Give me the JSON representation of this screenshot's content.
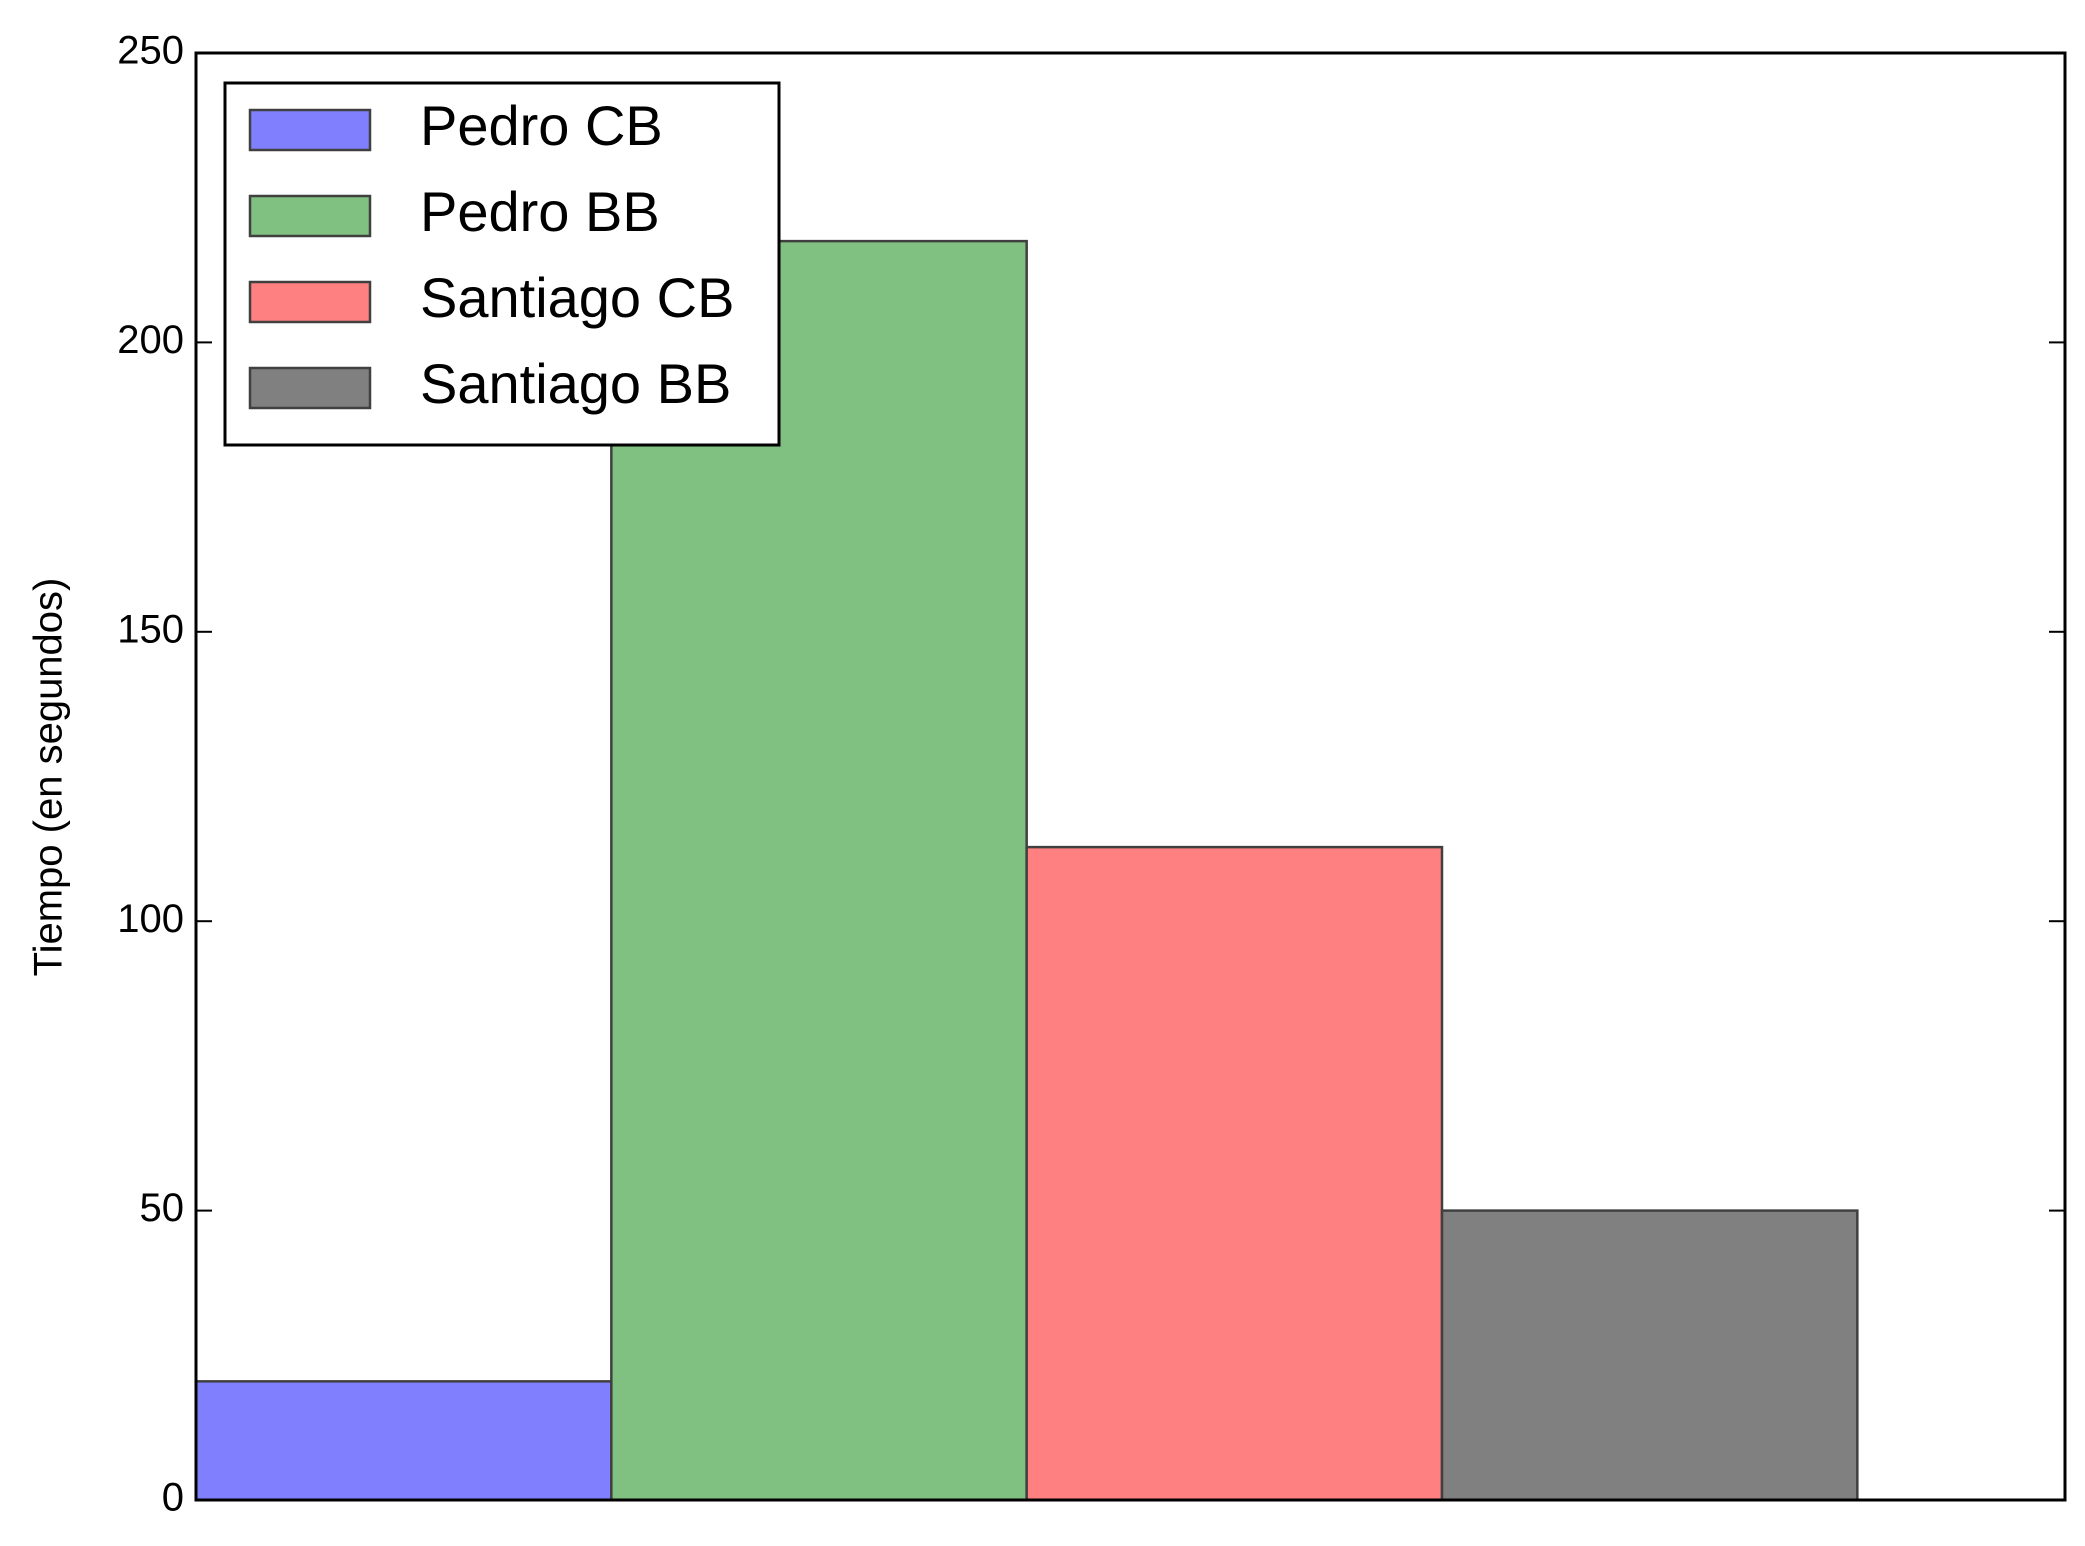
{
  "chart_data": {
    "type": "bar",
    "ylabel": "Tiempo (en segundos)",
    "series": [
      {
        "name": "Pedro CB",
        "color": "#8080ff",
        "values": [
          20.5
        ]
      },
      {
        "name": "Pedro BB",
        "color": "#80c080",
        "values": [
          217.5
        ]
      },
      {
        "name": "Santiago CB",
        "color": "#ff8080",
        "values": [
          112.8
        ]
      },
      {
        "name": "Santiago BB",
        "color": "#808080",
        "values": [
          50
        ]
      }
    ],
    "ylim": [
      0,
      250
    ],
    "yticks": [
      0,
      50,
      100,
      150,
      200,
      250
    ],
    "grid": false,
    "legend": "upper left"
  }
}
